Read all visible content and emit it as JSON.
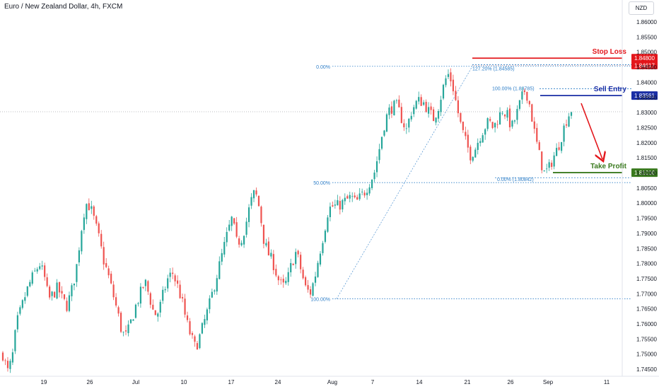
{
  "header": {
    "title": "Euro / New Zealand Dollar, 4h, FXCM",
    "currency": "NZD"
  },
  "chart_data": {
    "type": "candlestick",
    "title": "Euro / New Zealand Dollar, 4h, FXCM",
    "ylim": [
      1.742,
      1.868
    ],
    "y_ticks": [
      "1.86000",
      "1.85500",
      "1.85000",
      "1.84500",
      "1.84000",
      "1.83500",
      "1.83000",
      "1.82500",
      "1.82000",
      "1.81500",
      "1.81000",
      "1.80500",
      "1.80000",
      "1.79500",
      "1.79000",
      "1.78500",
      "1.78000",
      "1.77500",
      "1.77000",
      "1.76500",
      "1.76000",
      "1.75500",
      "1.75000",
      "1.74500"
    ],
    "x_ticks": [
      "19",
      "26",
      "Jul",
      "10",
      "17",
      "24",
      "Aug",
      "7",
      "14",
      "21",
      "26",
      "Sep",
      "11"
    ],
    "colors": {
      "up": "#26a69a",
      "down": "#ef5350",
      "stop": "#e3161b",
      "entry": "#1a2ea5",
      "profit": "#3a7a1e",
      "fib": "#2f7fc8"
    },
    "price_path": [
      1.75,
      1.744,
      1.748,
      1.76,
      1.765,
      1.77,
      1.774,
      1.777,
      1.78,
      1.776,
      1.768,
      1.77,
      1.772,
      1.768,
      1.766,
      1.771,
      1.778,
      1.79,
      1.8,
      1.799,
      1.794,
      1.788,
      1.781,
      1.776,
      1.77,
      1.764,
      1.757,
      1.756,
      1.761,
      1.766,
      1.77,
      1.774,
      1.769,
      1.763,
      1.764,
      1.77,
      1.775,
      1.777,
      1.773,
      1.768,
      1.761,
      1.756,
      1.752,
      1.756,
      1.761,
      1.766,
      1.772,
      1.778,
      1.784,
      1.79,
      1.795,
      1.787,
      1.788,
      1.793,
      1.8,
      1.804,
      1.798,
      1.787,
      1.783,
      1.78,
      1.775,
      1.772,
      1.774,
      1.78,
      1.784,
      1.778,
      1.772,
      1.77,
      1.775,
      1.783,
      1.79,
      1.798,
      1.799,
      1.799,
      1.8,
      1.801,
      1.802,
      1.8,
      1.802,
      1.804,
      1.807,
      1.81,
      1.817,
      1.825,
      1.83,
      1.832,
      1.832,
      1.828,
      1.824,
      1.83,
      1.833,
      1.834,
      1.833,
      1.83,
      1.828,
      1.832,
      1.838,
      1.843,
      1.84,
      1.832,
      1.825,
      1.82,
      1.816,
      1.818,
      1.822,
      1.825,
      1.827,
      1.825,
      1.828,
      1.831,
      1.829,
      1.825,
      1.829,
      1.834,
      1.838,
      1.832,
      1.823,
      1.816,
      1.81,
      1.811,
      1.815,
      1.818,
      1.823,
      1.828,
      1.831
    ],
    "candle_count": 232,
    "levels": [
      {
        "name": "Stop Loss",
        "value": 1.848,
        "label": "1.84800"
      },
      {
        "name": "Sell Entry",
        "value": 1.83561,
        "label": "1.83561"
      },
      {
        "name": "Take Profit",
        "value": 1.8101,
        "label": "1.81010"
      }
    ],
    "extra_price_label": "1.84617",
    "fib_left": {
      "levels": [
        "0.00%",
        "50.00%",
        "100.00%"
      ]
    },
    "fib_ext": {
      "labels": [
        "127.20% (1.84585)",
        "100.00% (1.83785)",
        "0.00% (1.80842)"
      ]
    }
  }
}
